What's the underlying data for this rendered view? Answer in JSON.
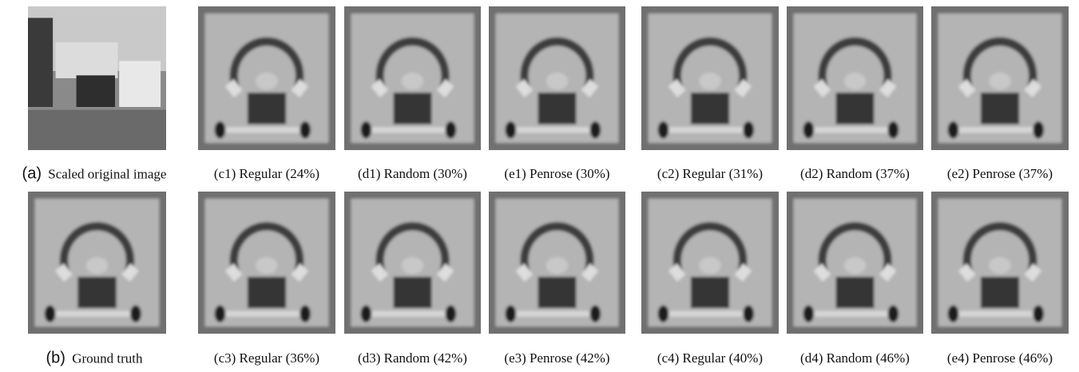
{
  "panels": [
    {
      "tag": "(a)",
      "caption": "Scaled original image"
    },
    {
      "tag": "(c1)",
      "caption": "Regular (24%)"
    },
    {
      "tag": "(d1)",
      "caption": "Random (30%)"
    },
    {
      "tag": "(e1)",
      "caption": "Penrose (30%)"
    },
    {
      "tag": "(c2)",
      "caption": "Regular (31%)"
    },
    {
      "tag": "(d2)",
      "caption": "Random (37%)"
    },
    {
      "tag": "(e2)",
      "caption": "Penrose (37%)"
    },
    {
      "tag": "(b)",
      "caption": "Ground truth"
    },
    {
      "tag": "(c3)",
      "caption": "Regular (36%)"
    },
    {
      "tag": "(d3)",
      "caption": "Random (42%)"
    },
    {
      "tag": "(e3)",
      "caption": "Penrose (42%)"
    },
    {
      "tag": "(c4)",
      "caption": "Regular (40%)"
    },
    {
      "tag": "(d4)",
      "caption": "Random (46%)"
    },
    {
      "tag": "(e4)",
      "caption": "Penrose (46%)"
    }
  ]
}
